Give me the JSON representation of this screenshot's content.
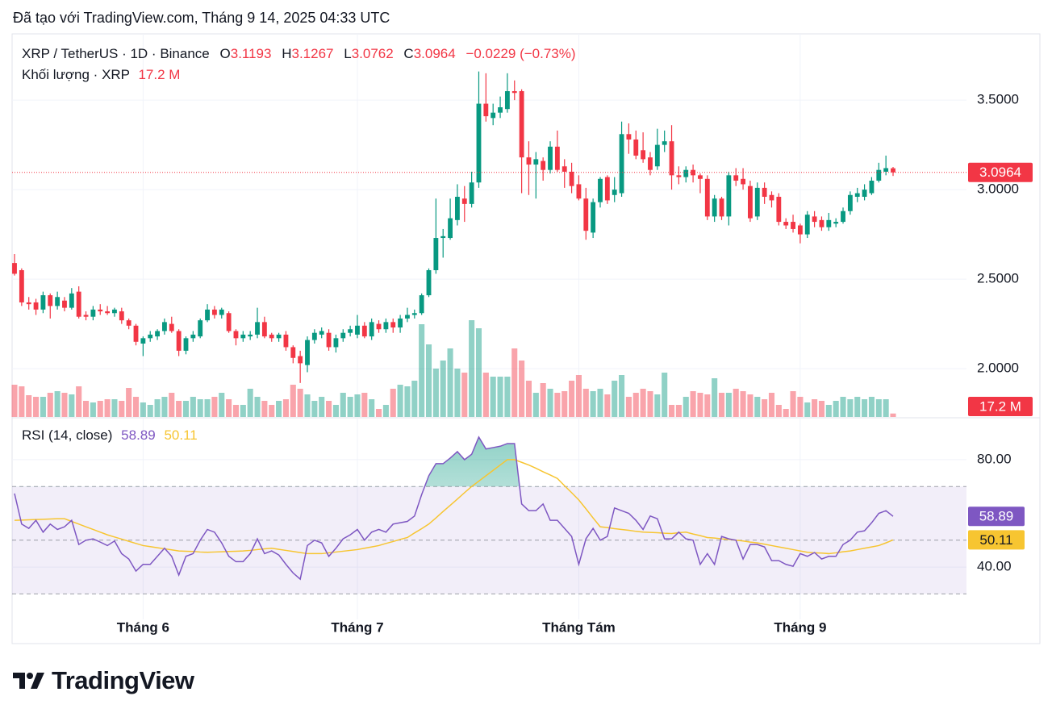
{
  "header": "Đã tạo với TradingView.com, Tháng 9 14, 2025 04:33 UTC",
  "chart_data": {
    "type": "candlestick",
    "symbol": "XRP / TetherUS · 1D · Binance",
    "ohlc_letters": [
      "O",
      "H",
      "L",
      "C"
    ],
    "change_label": "−0.0229 (−0.73%)",
    "volume_title": "Khối lượng · XRP",
    "volume_label": "17.2 M",
    "up_color": "#089981",
    "down_color": "#f23645",
    "categories": [
      null,
      null,
      null,
      null,
      null,
      null,
      null,
      null,
      null,
      null,
      null,
      null,
      null,
      null,
      null,
      null,
      null,
      null,
      "Tháng 6",
      null,
      null,
      null,
      null,
      null,
      null,
      null,
      null,
      null,
      null,
      null,
      null,
      null,
      null,
      null,
      null,
      null,
      null,
      null,
      null,
      null,
      null,
      null,
      null,
      null,
      null,
      null,
      null,
      null,
      "Tháng 7",
      null,
      null,
      null,
      null,
      null,
      null,
      null,
      null,
      null,
      null,
      null,
      null,
      null,
      null,
      null,
      null,
      null,
      null,
      null,
      null,
      null,
      null,
      null,
      null,
      null,
      null,
      null,
      null,
      null,
      null,
      "Tháng Tám",
      null,
      null,
      null,
      null,
      null,
      null,
      null,
      null,
      null,
      null,
      null,
      null,
      null,
      null,
      null,
      null,
      null,
      null,
      null,
      null,
      null,
      null,
      null,
      null,
      null,
      null,
      null,
      null,
      null,
      null,
      "Tháng 9",
      null,
      null,
      null,
      null,
      null,
      null,
      null,
      null,
      null,
      null,
      null,
      null,
      null
    ],
    "open": [
      2.59,
      2.55,
      2.37,
      2.37,
      2.33,
      2.41,
      2.35,
      2.38,
      2.34,
      2.43,
      2.3,
      2.29,
      2.33,
      2.32,
      2.31,
      2.32,
      2.27,
      2.24,
      2.14,
      2.17,
      2.18,
      2.21,
      2.25,
      2.21,
      2.1,
      2.17,
      2.18,
      2.27,
      2.33,
      2.3,
      2.31,
      2.21,
      2.17,
      2.18,
      2.19,
      2.26,
      2.19,
      2.17,
      2.19,
      2.12,
      2.07,
      2.02,
      2.16,
      2.19,
      2.2,
      2.12,
      2.17,
      2.2,
      2.19,
      2.24,
      2.18,
      2.25,
      2.22,
      2.26,
      2.23,
      2.28,
      2.3,
      2.31,
      2.41,
      2.55,
      2.73,
      2.73,
      2.83,
      2.95,
      2.92,
      3.04,
      3.48,
      3.4,
      3.43,
      3.45,
      3.55,
      3.55,
      3.18,
      3.14,
      3.16,
      3.11,
      3.24,
      3.13,
      3.1,
      3.03,
      2.95,
      2.76,
      2.93,
      3.07,
      2.97,
      2.98,
      3.31,
      3.28,
      3.22,
      3.18,
      3.13,
      3.25,
      3.27,
      3.08,
      3.07,
      3.11,
      3.08,
      3.06,
      2.85,
      2.95,
      2.85,
      3.08,
      3.06,
      3.02,
      2.85,
      3.01,
      2.97,
      2.96,
      2.82,
      2.82,
      2.8,
      2.75,
      2.85,
      2.83,
      2.79,
      2.81,
      2.82,
      2.88,
      2.96,
      2.96,
      2.98,
      3.05,
      3.1,
      3.1193
    ],
    "high": [
      2.64,
      2.56,
      2.4,
      2.39,
      2.43,
      2.42,
      2.43,
      2.4,
      2.45,
      2.46,
      2.32,
      2.35,
      2.36,
      2.35,
      2.34,
      2.34,
      2.28,
      2.25,
      2.18,
      2.21,
      2.22,
      2.28,
      2.29,
      2.22,
      2.18,
      2.21,
      2.28,
      2.36,
      2.35,
      2.34,
      2.32,
      2.22,
      2.21,
      2.21,
      2.34,
      2.29,
      2.2,
      2.2,
      2.21,
      2.13,
      2.1,
      2.18,
      2.22,
      2.23,
      2.22,
      2.19,
      2.22,
      2.24,
      2.3,
      2.26,
      2.28,
      2.27,
      2.28,
      2.28,
      2.3,
      2.34,
      2.33,
      2.42,
      2.56,
      2.95,
      2.78,
      2.95,
      3.03,
      3.02,
      3.1,
      3.66,
      3.65,
      3.48,
      3.52,
      3.65,
      3.61,
      3.56,
      3.27,
      3.21,
      3.18,
      3.27,
      3.33,
      3.17,
      3.15,
      3.08,
      3.01,
      2.95,
      3.07,
      3.08,
      3.07,
      3.38,
      3.37,
      3.33,
      3.32,
      3.21,
      3.34,
      3.33,
      3.36,
      3.13,
      3.13,
      3.14,
      3.09,
      3.08,
      2.97,
      2.96,
      3.1,
      3.12,
      3.12,
      3.05,
      3.04,
      3.04,
      2.99,
      2.98,
      2.84,
      2.86,
      2.81,
      2.88,
      2.88,
      2.85,
      2.87,
      2.84,
      2.9,
      2.99,
      3.01,
      3.03,
      3.07,
      3.15,
      3.19,
      3.1267
    ],
    "low": [
      2.52,
      2.35,
      2.33,
      2.3,
      2.31,
      2.28,
      2.33,
      2.32,
      2.33,
      2.28,
      2.27,
      2.27,
      2.3,
      2.3,
      2.29,
      2.25,
      2.22,
      2.13,
      2.07,
      2.15,
      2.16,
      2.19,
      2.2,
      2.07,
      2.08,
      2.15,
      2.17,
      2.26,
      2.28,
      2.28,
      2.2,
      2.13,
      2.15,
      2.16,
      2.17,
      2.17,
      2.15,
      2.15,
      2.1,
      2.03,
      1.92,
      1.98,
      2.14,
      2.17,
      2.1,
      2.09,
      2.15,
      2.18,
      2.17,
      2.17,
      2.16,
      2.2,
      2.2,
      2.2,
      2.2,
      2.26,
      2.28,
      2.3,
      2.4,
      2.53,
      2.62,
      2.72,
      2.8,
      2.82,
      2.9,
      3.01,
      3.38,
      3.36,
      3.4,
      3.43,
      3.5,
      2.98,
      2.97,
      2.95,
      3.05,
      3.09,
      3.1,
      3.01,
      2.98,
      2.94,
      2.72,
      2.73,
      2.9,
      2.92,
      2.93,
      2.96,
      3.2,
      3.17,
      3.15,
      3.08,
      3.11,
      3.21,
      3.0,
      3.03,
      3.04,
      3.04,
      2.98,
      2.83,
      2.82,
      2.83,
      2.8,
      3.02,
      3.0,
      2.82,
      2.83,
      2.92,
      2.9,
      2.8,
      2.78,
      2.76,
      2.7,
      2.73,
      2.79,
      2.77,
      2.77,
      2.79,
      2.81,
      2.86,
      2.93,
      2.94,
      2.97,
      3.04,
      3.08,
      3.0762
    ],
    "close": [
      2.53,
      2.37,
      2.36,
      2.33,
      2.41,
      2.35,
      2.4,
      2.34,
      2.42,
      2.29,
      2.29,
      2.33,
      2.32,
      2.31,
      2.33,
      2.27,
      2.24,
      2.15,
      2.17,
      2.19,
      2.21,
      2.26,
      2.21,
      2.1,
      2.17,
      2.19,
      2.27,
      2.33,
      2.3,
      2.33,
      2.21,
      2.17,
      2.19,
      2.19,
      2.26,
      2.18,
      2.17,
      2.19,
      2.12,
      2.06,
      2.03,
      2.16,
      2.2,
      2.21,
      2.12,
      2.17,
      2.2,
      2.22,
      2.24,
      2.18,
      2.26,
      2.22,
      2.26,
      2.23,
      2.28,
      2.3,
      2.31,
      2.41,
      2.55,
      2.73,
      2.74,
      2.84,
      2.96,
      2.92,
      3.04,
      3.48,
      3.41,
      3.43,
      3.46,
      3.55,
      3.54,
      3.18,
      3.14,
      3.17,
      3.11,
      3.24,
      3.11,
      3.1,
      3.02,
      2.95,
      2.77,
      2.93,
      3.06,
      2.94,
      3.0,
      3.31,
      3.28,
      3.19,
      3.17,
      3.11,
      3.25,
      3.27,
      3.08,
      3.07,
      3.11,
      3.08,
      3.06,
      2.85,
      2.95,
      2.85,
      3.08,
      3.05,
      3.03,
      2.84,
      3.01,
      2.96,
      2.94,
      2.82,
      2.8,
      2.78,
      2.75,
      2.86,
      2.82,
      2.79,
      2.83,
      2.82,
      2.88,
      2.97,
      2.98,
      3.0,
      3.05,
      3.11,
      3.12,
      3.0964
    ],
    "volume": [
      160,
      152,
      108,
      100,
      100,
      120,
      128,
      120,
      112,
      152,
      80,
      72,
      80,
      88,
      88,
      80,
      144,
      100,
      72,
      60,
      88,
      100,
      120,
      80,
      80,
      100,
      88,
      88,
      100,
      120,
      88,
      60,
      60,
      140,
      100,
      80,
      60,
      80,
      88,
      160,
      140,
      112,
      80,
      100,
      80,
      60,
      120,
      100,
      112,
      120,
      88,
      40,
      60,
      140,
      160,
      152,
      180,
      460,
      360,
      240,
      280,
      340,
      240,
      220,
      480,
      440,
      220,
      200,
      200,
      200,
      340,
      280,
      180,
      120,
      168,
      140,
      120,
      128,
      180,
      208,
      140,
      128,
      140,
      112,
      180,
      208,
      100,
      120,
      140,
      128,
      112,
      220,
      60,
      60,
      100,
      128,
      120,
      112,
      192,
      120,
      120,
      140,
      128,
      112,
      100,
      88,
      120,
      60,
      40,
      128,
      100,
      72,
      88,
      80,
      60,
      80,
      100,
      88,
      100,
      88,
      100,
      88,
      88,
      17.2
    ],
    "ylim": [
      1.73,
      3.87
    ],
    "yticks": [
      {
        "value": 3.5,
        "label": "3.5000"
      },
      {
        "value": 3,
        "label": "3.0000"
      },
      {
        "value": 2.5,
        "label": "2.5000"
      },
      {
        "value": 2,
        "label": "2.0000"
      }
    ],
    "volume_lim": [
      0,
      1900
    ],
    "grid": true,
    "rsi": {
      "title": "RSI (14, close)",
      "color": "#7e57c2",
      "ma_color": "#f7c531",
      "band_fill": "#7e57c2",
      "overbought_color": "#089981",
      "values": [
        67.4,
        56,
        54.4,
        57.4,
        53,
        56,
        54,
        55,
        57.4,
        48.4,
        50,
        50.5,
        49.3,
        48,
        49.7,
        45,
        43,
        38.5,
        41,
        41,
        44,
        47,
        44,
        37,
        44,
        45,
        50,
        54,
        53,
        49,
        44,
        42,
        42,
        45,
        50.5,
        45,
        46,
        44.5,
        41,
        37.8,
        35.5,
        48,
        50,
        49,
        44,
        47,
        50.5,
        52,
        54,
        50,
        53,
        54,
        53,
        56,
        56.5,
        57,
        59,
        67,
        74,
        78.5,
        78.5,
        80.6,
        83,
        80,
        82,
        88.4,
        84,
        84.5,
        85,
        86,
        86,
        63.5,
        61,
        61,
        63.5,
        57.4,
        57.4,
        54.4,
        51.4,
        41,
        50.5,
        54.4,
        50,
        51.4,
        62,
        61,
        60,
        57.4,
        54,
        59,
        58,
        50.5,
        50.5,
        53,
        50.5,
        50,
        41,
        45,
        41,
        51.4,
        50.5,
        50,
        43,
        48.4,
        48.4,
        47.5,
        42.4,
        42.4,
        41,
        40.3,
        45,
        44,
        45.4,
        43,
        44,
        44,
        48.4,
        50,
        53,
        53.5,
        56.5,
        60,
        61,
        58.89
      ],
      "ma_values": [
        57.4,
        57.5,
        57.6,
        57.7,
        57.8,
        57.9,
        58,
        58,
        57,
        56,
        55,
        54,
        53,
        52,
        51.2,
        50.4,
        49.6,
        48.8,
        48,
        47.6,
        47.2,
        46.8,
        46.4,
        46,
        45.9,
        45.8,
        45.6,
        45.5,
        45.6,
        45.7,
        45.8,
        45.9,
        46,
        46.2,
        46.5,
        46.8,
        47,
        46.6,
        46.2,
        45.8,
        45.4,
        45,
        45,
        45,
        45.3,
        45.6,
        45.9,
        46.2,
        46.5,
        47,
        47.5,
        48,
        48.8,
        49.5,
        50.3,
        51,
        52.7,
        54.3,
        56,
        58.3,
        60.7,
        63,
        65.3,
        67.7,
        70,
        72,
        74,
        76,
        78,
        80,
        80,
        79,
        78,
        76.8,
        75.5,
        74.3,
        73,
        70.3,
        67.7,
        65,
        61.7,
        58.3,
        55,
        54.7,
        54.3,
        54,
        53.7,
        53.3,
        53,
        52.9,
        52.8,
        52.6,
        52.5,
        52.8,
        53,
        52.3,
        51.7,
        51,
        50.8,
        50.5,
        50.3,
        50,
        49.7,
        49.3,
        49,
        48.5,
        48,
        47.5,
        47,
        46.5,
        46,
        45.5,
        45.3,
        45.2,
        45,
        45.3,
        45.7,
        46,
        46.5,
        47,
        47.5,
        48,
        49,
        50.11
      ],
      "ylim": [
        22.9,
        95.6
      ],
      "yticks": [
        {
          "value": 80,
          "label": "80.00"
        },
        {
          "value": 40,
          "label": "40.00"
        }
      ],
      "bands": [
        70,
        50,
        30
      ]
    }
  },
  "footer": {
    "logo": "TradingView"
  }
}
